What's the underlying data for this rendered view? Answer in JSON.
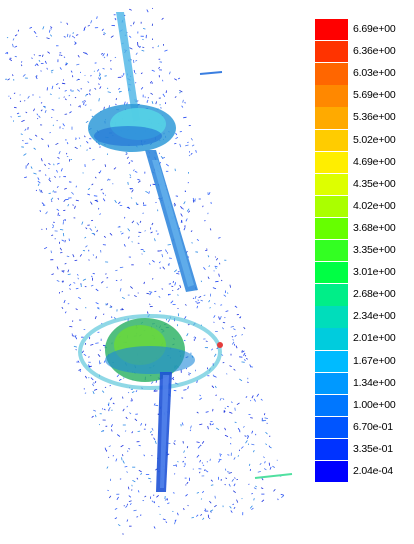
{
  "colorbar": {
    "labels": [
      "6.69e+00",
      "6.36e+00",
      "6.03e+00",
      "5.69e+00",
      "5.36e+00",
      "5.02e+00",
      "4.69e+00",
      "4.35e+00",
      "4.02e+00",
      "3.68e+00",
      "3.35e+00",
      "3.01e+00",
      "2.68e+00",
      "2.34e+00",
      "2.01e+00",
      "1.67e+00",
      "1.34e+00",
      "1.00e+00",
      "6.70e-01",
      "3.35e-01",
      "2.04e-04"
    ],
    "colors": [
      "#ff0000",
      "#ff3300",
      "#ff6600",
      "#ff8800",
      "#ffaa00",
      "#ffcc00",
      "#ffee00",
      "#ddff00",
      "#aaff00",
      "#66ff00",
      "#33ff22",
      "#00ff44",
      "#00ee88",
      "#00ddbb",
      "#00ccdd",
      "#00bbff",
      "#0099ff",
      "#0077ff",
      "#0055ff",
      "#0033ff",
      "#0000ff"
    ],
    "min": 0.000204,
    "max": 6.69
  }
}
